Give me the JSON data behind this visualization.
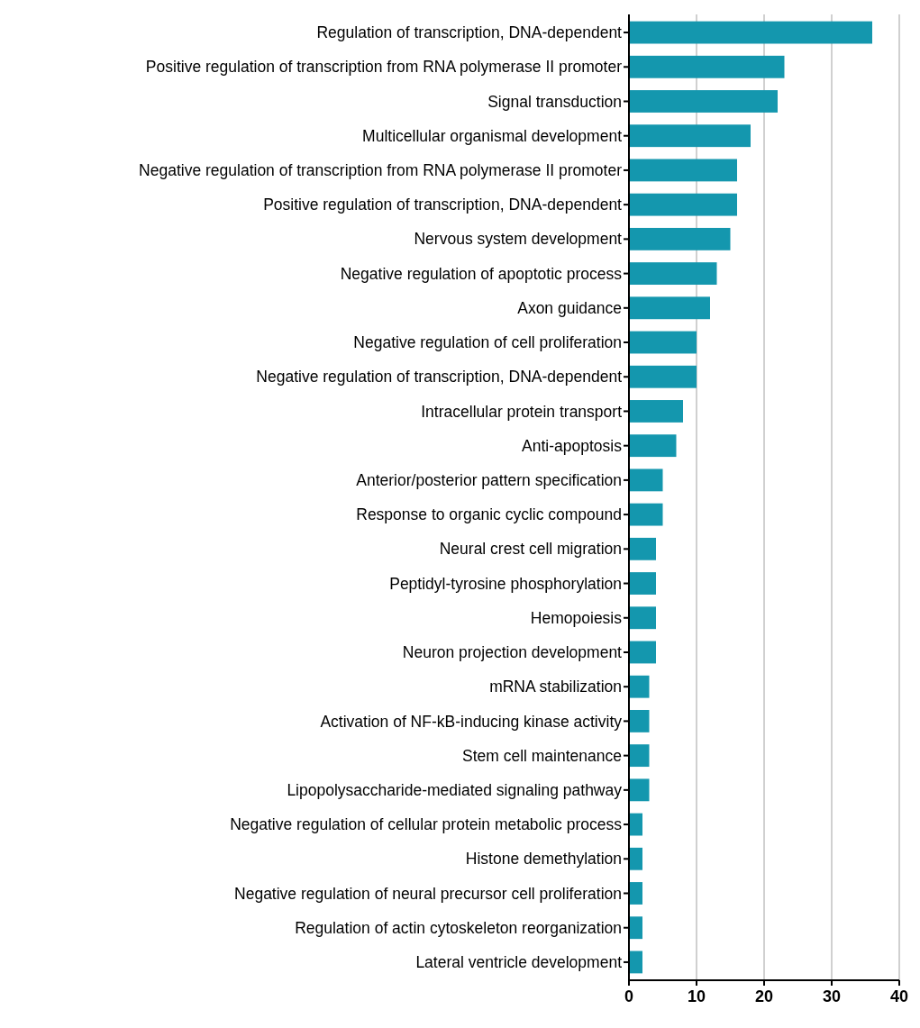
{
  "chart_data": {
    "type": "bar",
    "orientation": "horizontal",
    "categories": [
      "Regulation of transcription, DNA-dependent",
      "Positive regulation of transcription from RNA polymerase II promoter",
      "Signal transduction",
      "Multicellular organismal development",
      "Negative regulation of transcription from RNA polymerase II promoter",
      "Positive regulation of transcription, DNA-dependent",
      "Nervous system development",
      "Negative regulation of apoptotic process",
      "Axon guidance",
      "Negative regulation of cell proliferation",
      "Negative regulation of transcription, DNA-dependent",
      "Intracellular protein transport",
      "Anti-apoptosis",
      "Anterior/posterior pattern specification",
      "Response to organic cyclic compound",
      "Neural crest cell migration",
      "Peptidyl-tyrosine phosphorylation",
      "Hemopoiesis",
      "Neuron projection development",
      "mRNA stabilization",
      "Activation of NF-kB-inducing kinase activity",
      "Stem cell maintenance",
      "Lipopolysaccharide-mediated signaling pathway",
      "Negative regulation of cellular protein metabolic process",
      "Histone demethylation",
      "Negative regulation of neural precursor cell proliferation",
      "Regulation of actin cytoskeleton reorganization",
      "Lateral ventricle development"
    ],
    "values": [
      36,
      23,
      22,
      18,
      16,
      16,
      15,
      13,
      12,
      10,
      10,
      8,
      7,
      5,
      5,
      4,
      4,
      4,
      4,
      3,
      3,
      3,
      3,
      2,
      2,
      2,
      2,
      2
    ],
    "color": "#1497ae",
    "xlim": [
      0,
      40
    ],
    "xticks": [
      0,
      10,
      20,
      30,
      40
    ],
    "grid": "x"
  }
}
